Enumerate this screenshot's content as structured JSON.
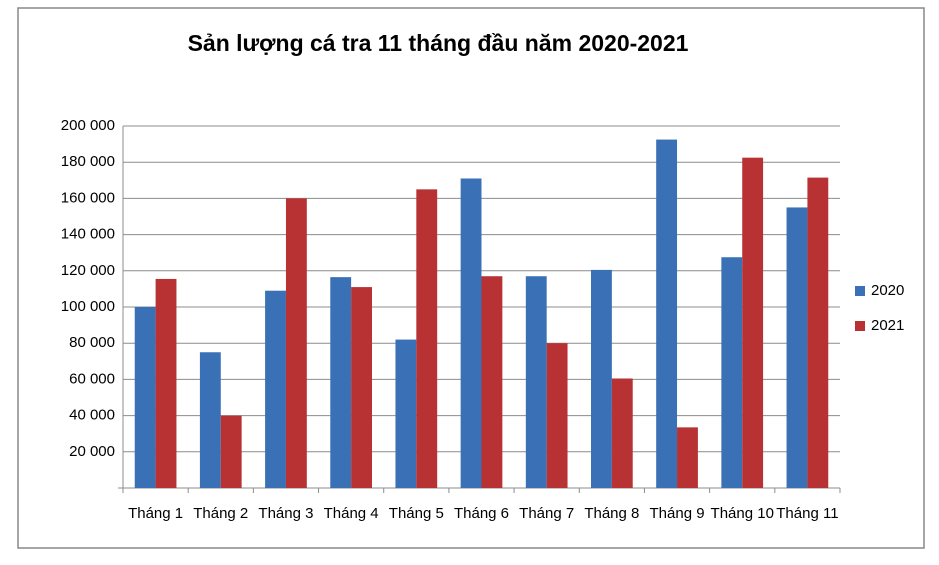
{
  "chart_data": {
    "type": "bar",
    "title": "Sản lượng cá tra 11 tháng đầu năm 2020-2021",
    "categories": [
      "Tháng 1",
      "Tháng 2",
      "Tháng 3",
      "Tháng 4",
      "Tháng 5",
      "Tháng 6",
      "Tháng 7",
      "Tháng 8",
      "Tháng 9",
      "Tháng 10",
      "Tháng 11"
    ],
    "series": [
      {
        "name": "2020",
        "color": "#3a70b5",
        "values": [
          100000,
          75000,
          109000,
          116500,
          82000,
          171000,
          117000,
          120500,
          192500,
          127500,
          155000
        ]
      },
      {
        "name": "2021",
        "color": "#b83234",
        "values": [
          115500,
          40000,
          160000,
          111000,
          165000,
          117000,
          80000,
          60500,
          33500,
          182500,
          171500
        ]
      }
    ],
    "ylim": [
      0,
      200000
    ],
    "yticks": [
      {
        "value": 20000,
        "label": "20 000"
      },
      {
        "value": 40000,
        "label": "40 000"
      },
      {
        "value": 60000,
        "label": "60 000"
      },
      {
        "value": 80000,
        "label": "80 000"
      },
      {
        "value": 100000,
        "label": "100 000"
      },
      {
        "value": 120000,
        "label": "120 000"
      },
      {
        "value": 140000,
        "label": "140 000"
      },
      {
        "value": 160000,
        "label": "160 000"
      },
      {
        "value": 180000,
        "label": "180 000"
      },
      {
        "value": 200000,
        "label": "200 000"
      }
    ],
    "grid": true,
    "legend": "right"
  }
}
